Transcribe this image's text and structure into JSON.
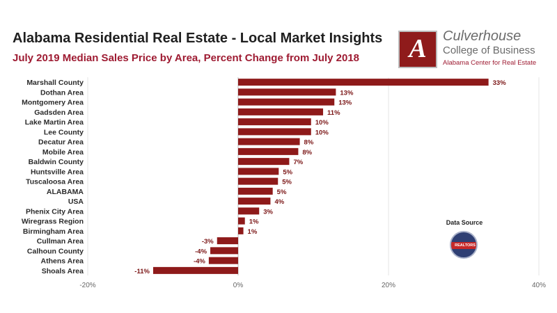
{
  "header": {
    "title": "Alabama Residential Real Estate - Local Market Insights",
    "subtitle": "July 2019 Median Sales Price by Area, Percent Change from July 2018"
  },
  "logo": {
    "letter": "A",
    "line1": "Culverhouse",
    "line2": "College of Business",
    "line3": "Alabama Center for Real Estate"
  },
  "data_source": {
    "label": "Data Source",
    "seal_text": "REALTORS"
  },
  "chart_data": {
    "type": "bar",
    "orientation": "horizontal",
    "categories": [
      "Marshall County",
      "Dothan Area",
      "Montgomery Area",
      "Gadsden Area",
      "Lake Martin Area",
      "Lee County",
      "Decatur Area",
      "Mobile Area",
      "Baldwin County",
      "Huntsville Area",
      "Tuscaloosa Area",
      "ALABAMA",
      "USA",
      "Phenix City Area",
      "Wiregrass Region",
      "Birmingham Area",
      "Cullman Area",
      "Calhoun County",
      "Athens Area",
      "Shoals Area"
    ],
    "values": [
      33.3,
      13.0,
      12.8,
      11.3,
      9.7,
      9.7,
      8.2,
      8.0,
      6.8,
      5.4,
      5.3,
      4.6,
      4.3,
      2.8,
      0.9,
      0.7,
      -2.8,
      -3.7,
      -3.9,
      -11.3
    ],
    "value_labels": [
      "33%",
      "13%",
      "13%",
      "11%",
      "10%",
      "10%",
      "8%",
      "8%",
      "7%",
      "5%",
      "5%",
      "5%",
      "4%",
      "3%",
      "1%",
      "1%",
      "-3%",
      "-4%",
      "-4%",
      "-11%"
    ],
    "xlim": [
      -20,
      40
    ],
    "xticks": [
      -20,
      0,
      20,
      40
    ],
    "xtick_labels": [
      "-20%",
      "0%",
      "20%",
      "40%"
    ],
    "bar_color": "#8e1a1a",
    "grid": "vertical",
    "legend": "none"
  }
}
